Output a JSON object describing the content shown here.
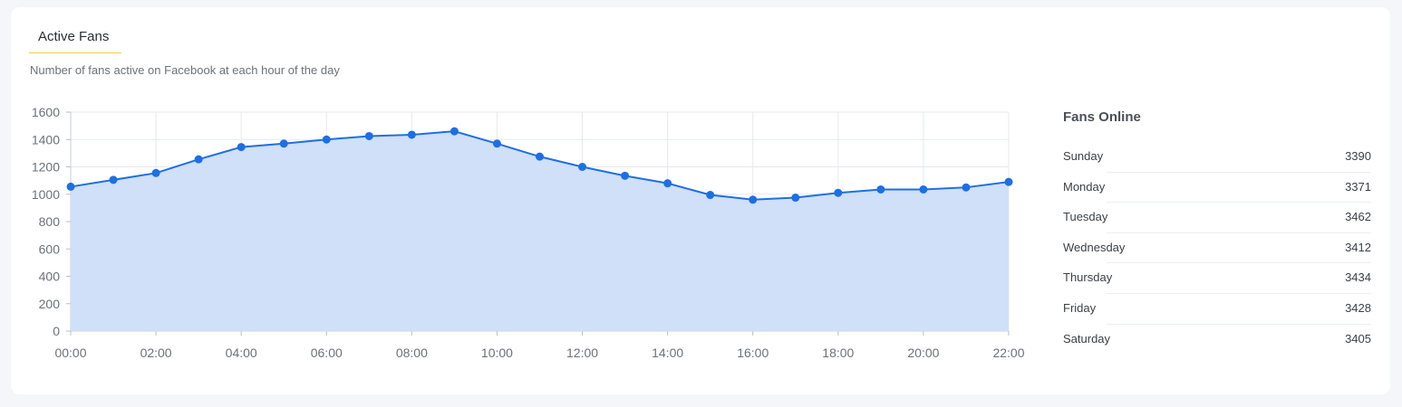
{
  "header": {
    "tab_label": "Active Fans",
    "subtitle": "Number of fans active on Facebook at each hour of the day"
  },
  "chart_data": {
    "type": "area",
    "title": "",
    "xlabel": "",
    "ylabel": "",
    "x": [
      "00:00",
      "01:00",
      "02:00",
      "03:00",
      "04:00",
      "05:00",
      "06:00",
      "07:00",
      "08:00",
      "09:00",
      "10:00",
      "11:00",
      "12:00",
      "13:00",
      "14:00",
      "15:00",
      "16:00",
      "17:00",
      "18:00",
      "19:00",
      "20:00",
      "21:00",
      "22:00"
    ],
    "x_tick_labels": [
      "00:00",
      "02:00",
      "04:00",
      "06:00",
      "08:00",
      "10:00",
      "12:00",
      "14:00",
      "16:00",
      "18:00",
      "20:00",
      "22:00"
    ],
    "y_ticks": [
      0,
      200,
      400,
      600,
      800,
      1000,
      1200,
      1400,
      1600
    ],
    "ylim": [
      0,
      1600
    ],
    "grid": true,
    "legend": "none",
    "series": [
      {
        "values": [
          1055,
          1105,
          1155,
          1255,
          1345,
          1370,
          1400,
          1425,
          1435,
          1460,
          1370,
          1275,
          1200,
          1135,
          1080,
          995,
          960,
          975,
          1010,
          1035,
          1035,
          1050,
          1090
        ]
      }
    ],
    "colors": {
      "line": "#1f6fe0",
      "fill": "#cfe0f8",
      "point": "#1f6fe0",
      "grid": "#e6e8ec"
    }
  },
  "fans_online": {
    "title": "Fans Online",
    "days": [
      {
        "day": "Sunday",
        "value": "3390"
      },
      {
        "day": "Monday",
        "value": "3371"
      },
      {
        "day": "Tuesday",
        "value": "3462"
      },
      {
        "day": "Wednesday",
        "value": "3412"
      },
      {
        "day": "Thursday",
        "value": "3434"
      },
      {
        "day": "Friday",
        "value": "3428"
      },
      {
        "day": "Saturday",
        "value": "3405"
      }
    ]
  }
}
